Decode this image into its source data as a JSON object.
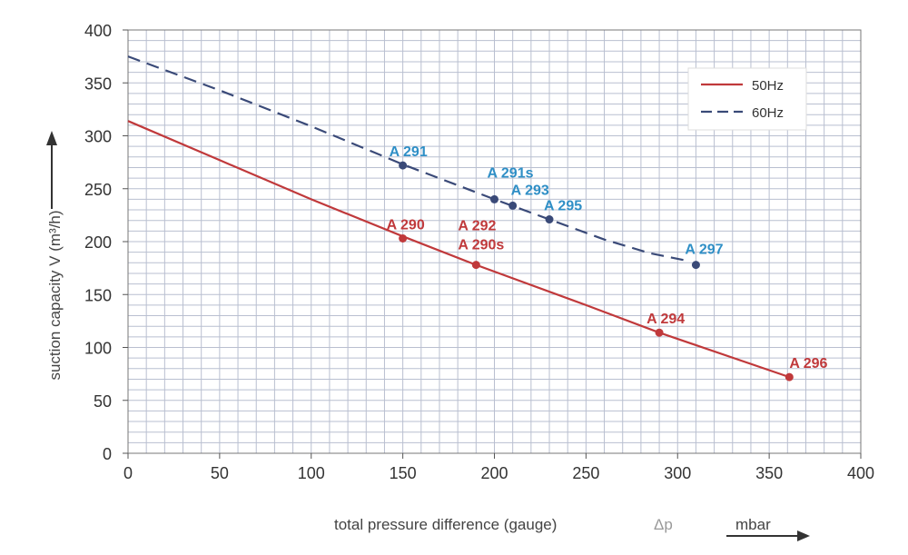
{
  "chart_data": {
    "type": "line",
    "xlabel": "total pressure difference (gauge)",
    "xlabel_symbol": "Δp",
    "xunit": "mbar",
    "ylabel": "suction capacity V (m³/h)",
    "xlim": [
      0,
      400
    ],
    "ylim": [
      0,
      400
    ],
    "xticks": [
      "0",
      "50",
      "100",
      "150",
      "200",
      "250",
      "300",
      "350",
      "400"
    ],
    "yticks": [
      "0",
      "50",
      "100",
      "150",
      "200",
      "250",
      "300",
      "350",
      "400"
    ],
    "grid": true,
    "legend_position": "top-right",
    "series": [
      {
        "name": "50Hz",
        "color": "#c0393b",
        "style": "solid",
        "curve": [
          [
            0,
            314
          ],
          [
            50,
            277
          ],
          [
            100,
            240
          ],
          [
            150,
            205
          ],
          [
            190,
            178
          ],
          [
            250,
            140
          ],
          [
            290,
            114
          ],
          [
            361,
            72
          ]
        ],
        "points": [
          {
            "label": "A 290",
            "x": 150,
            "y": 203
          },
          {
            "label": "A 292\nA 290s",
            "x": 190,
            "y": 178
          },
          {
            "label": "A 294",
            "x": 290,
            "y": 114
          },
          {
            "label": "A 296",
            "x": 361,
            "y": 72
          }
        ]
      },
      {
        "name": "60Hz",
        "color": "#3a4a78",
        "label_color": "#2f8fc6",
        "style": "dashed",
        "curve": [
          [
            0,
            375
          ],
          [
            50,
            343
          ],
          [
            100,
            309
          ],
          [
            150,
            273
          ],
          [
            200,
            240
          ],
          [
            230,
            221
          ],
          [
            260,
            202
          ],
          [
            285,
            189
          ],
          [
            305,
            182
          ]
        ],
        "points": [
          {
            "label": "A 291",
            "x": 150,
            "y": 272
          },
          {
            "label": "A 291s",
            "x": 200,
            "y": 240
          },
          {
            "label": "A 293",
            "x": 210,
            "y": 234
          },
          {
            "label": "A 295",
            "x": 230,
            "y": 221
          },
          {
            "label": "A 297",
            "x": 310,
            "y": 178
          }
        ]
      }
    ]
  }
}
